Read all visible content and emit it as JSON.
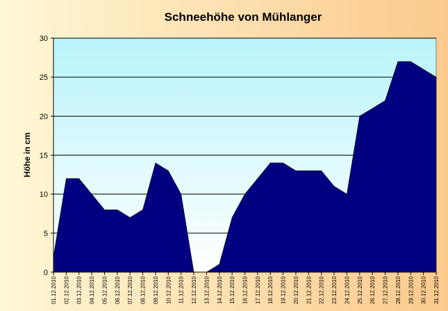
{
  "chart_data": {
    "type": "area",
    "title": "Schneehöhe von Mühlanger",
    "ylabel": "Höhe in cm",
    "xlabel": "",
    "ylim": [
      0,
      30
    ],
    "yticks": [
      0,
      5,
      10,
      15,
      20,
      25,
      30
    ],
    "grid": true,
    "legend": "none",
    "categories": [
      "01.12.2010",
      "02.12.2010",
      "03.12.2010",
      "04.12.2010",
      "05.12.2010",
      "06.12.2010",
      "07.12.2010",
      "08.12.2010",
      "09.12.2010",
      "10.12.2010",
      "11.12.2010",
      "12.12.2010",
      "13.12.2010",
      "14.12.2010",
      "15.12.2010",
      "16.12.2010",
      "17.12.2010",
      "18.12.2010",
      "19.12.2010",
      "20.12.2010",
      "21.12.2010",
      "22.12.2010",
      "23.12.2010",
      "24.12.2010",
      "25.12.2010",
      "26.12.2010",
      "27.12.2010",
      "28.12.2010",
      "29.12.2010",
      "30.12.2010",
      "31.12.2010"
    ],
    "values": [
      2,
      12,
      12,
      10,
      8,
      8,
      7,
      8,
      14,
      13,
      10,
      0,
      0,
      1,
      7,
      10,
      12,
      14,
      14,
      13,
      13,
      13,
      11,
      10,
      20,
      21,
      22,
      27,
      27,
      26,
      25
    ],
    "colors": {
      "area": "#000080",
      "plot_top": "#b8f4fb",
      "plot_bottom": "#ffffff",
      "background_left": "#fff8d6",
      "background_right": "#fbc98c"
    }
  }
}
